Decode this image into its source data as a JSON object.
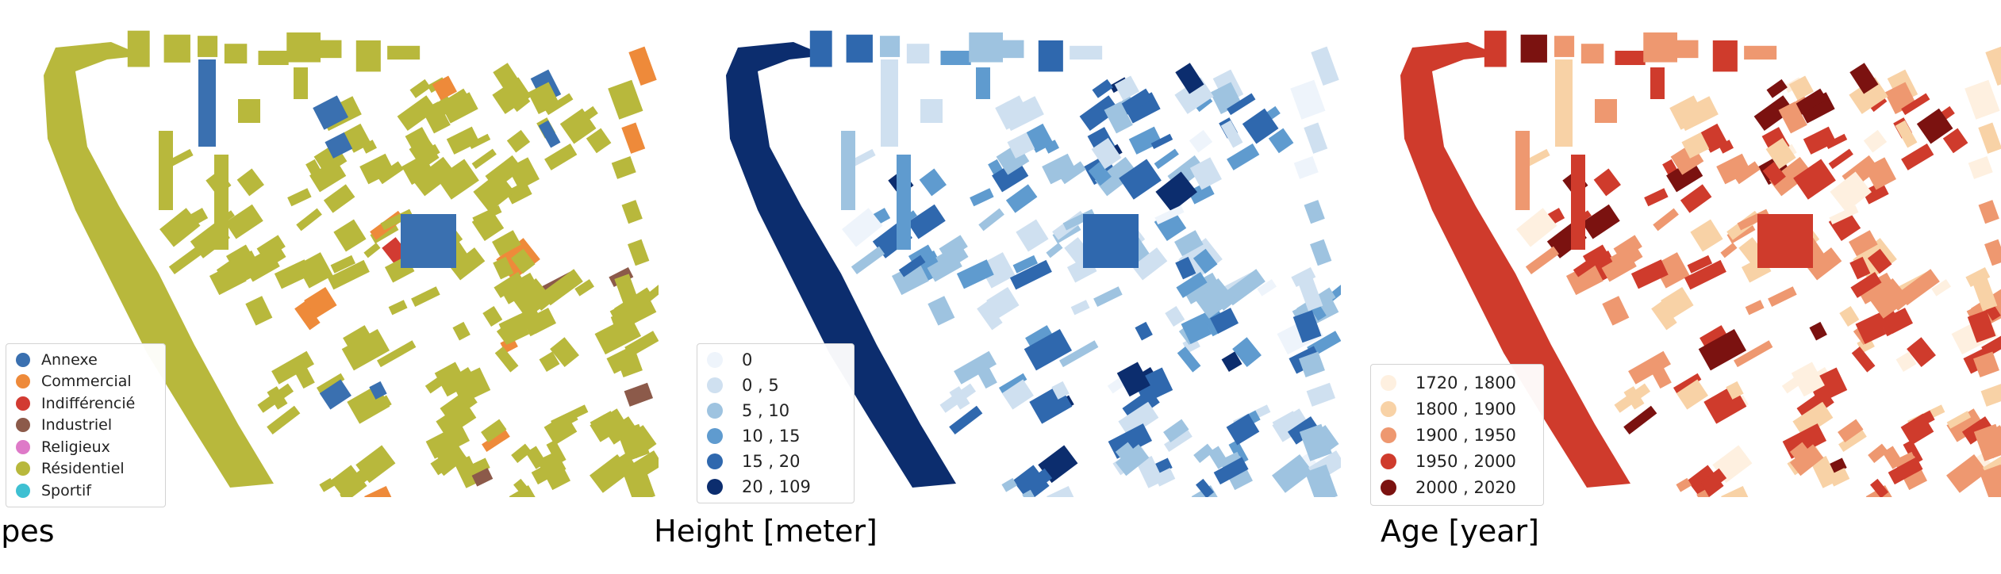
{
  "panels": [
    {
      "title": "Types",
      "legend": [
        {
          "label": "Annexe",
          "color": "#3a70b0"
        },
        {
          "label": "Commercial",
          "color": "#ee8a3a"
        },
        {
          "label": "Indifférencié",
          "color": "#d23b32"
        },
        {
          "label": "Industriel",
          "color": "#8c5a4a"
        },
        {
          "label": "Religieux",
          "color": "#de7ac8"
        },
        {
          "label": "Résidentiel",
          "color": "#b8b83c"
        },
        {
          "label": "Sportif",
          "color": "#3ec0d2"
        }
      ],
      "base_color": "#b8b83c",
      "accents": [
        "#3a70b0",
        "#ee8a3a",
        "#d23b32",
        "#8c5a4a"
      ]
    },
    {
      "title": "Height [meter]",
      "legend": [
        {
          "label": "0",
          "color": "#eef4fb"
        },
        {
          "label": "0 , 5",
          "color": "#cfe0f0"
        },
        {
          "label": "5 , 10",
          "color": "#9ec3e0"
        },
        {
          "label": "10 , 15",
          "color": "#5f9bcf"
        },
        {
          "label": "15 , 20",
          "color": "#2f68ae"
        },
        {
          "label": "20 , 109",
          "color": "#0c2d6e"
        }
      ]
    },
    {
      "title": "Age [year]",
      "legend": [
        {
          "label": "1720 , 1800",
          "color": "#fef0e0"
        },
        {
          "label": "1800 , 1900",
          "color": "#f8d2a6"
        },
        {
          "label": "1900 , 1950",
          "color": "#ee9870"
        },
        {
          "label": "1950 , 2000",
          "color": "#cf3b2c"
        },
        {
          "label": "2000 , 2020",
          "color": "#7b1210"
        }
      ]
    }
  ]
}
